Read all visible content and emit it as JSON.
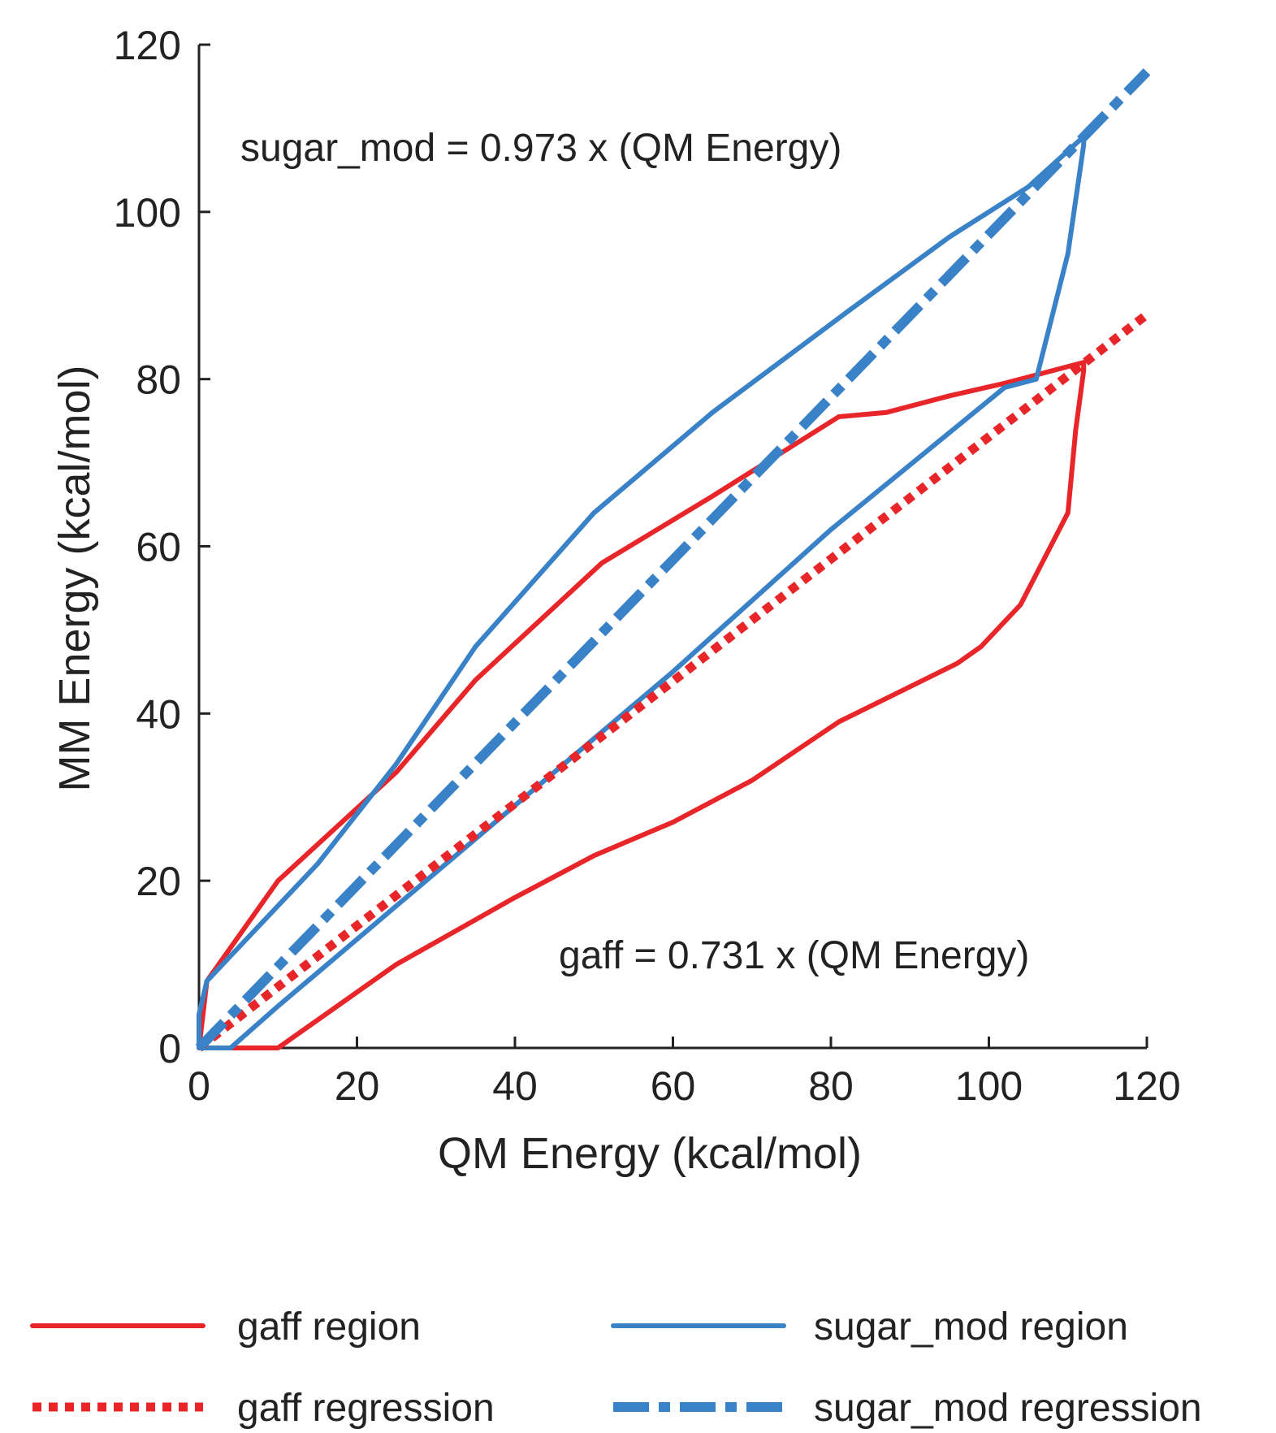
{
  "chart_data": {
    "type": "line",
    "title": "",
    "xlabel": "QM Energy (kcal/mol)",
    "ylabel": "MM Energy (kcal/mol)",
    "xlim": [
      0,
      120
    ],
    "ylim": [
      0,
      120
    ],
    "xticks": [
      0,
      20,
      40,
      60,
      80,
      100,
      120
    ],
    "yticks": [
      0,
      20,
      40,
      60,
      80,
      100,
      120
    ],
    "grid": false,
    "legend_position": "bottom",
    "colors": {
      "gaff": "#e8262a",
      "sugar_mod": "#3a82c8"
    },
    "annotations": [
      {
        "id": "sugar_mod_eq",
        "text": "sugar_mod = 0.973 x (QM Energy)"
      },
      {
        "id": "gaff_eq",
        "text": "gaff = 0.731 x (QM Energy)"
      }
    ],
    "series": [
      {
        "name": "gaff region",
        "style": "solid",
        "color": "#e8262a",
        "x": [
          0,
          0.5,
          1,
          10,
          25,
          35,
          51,
          65,
          81,
          87,
          95,
          102,
          112,
          112,
          111,
          110,
          104,
          99,
          96,
          81,
          70,
          60,
          50,
          40,
          25,
          10,
          7,
          0
        ],
        "y": [
          0,
          4,
          8,
          20,
          33,
          44,
          58,
          66,
          75.5,
          76,
          78,
          79.5,
          82,
          81,
          74,
          64,
          53,
          48,
          46,
          39,
          32,
          27,
          23,
          18,
          10,
          0,
          0,
          0
        ]
      },
      {
        "name": "sugar_mod region",
        "style": "solid",
        "color": "#3a82c8",
        "x": [
          0,
          0,
          1,
          5,
          15,
          25,
          35,
          50,
          65,
          82,
          95,
          105,
          112,
          112,
          110,
          106,
          102,
          80,
          60,
          50,
          25,
          15,
          10,
          4,
          0
        ],
        "y": [
          0,
          4,
          8,
          12,
          22,
          34,
          48,
          64,
          76,
          88,
          97,
          103,
          109,
          108,
          95,
          80,
          79,
          62,
          45,
          37,
          17,
          9,
          5,
          0,
          0
        ]
      },
      {
        "name": "gaff regression",
        "style": "dotted",
        "color": "#e8262a",
        "x": [
          0,
          120
        ],
        "y": [
          0,
          87.72
        ]
      },
      {
        "name": "sugar_mod regression",
        "style": "dashdot",
        "color": "#3a82c8",
        "x": [
          0,
          120
        ],
        "y": [
          0,
          116.76
        ]
      }
    ],
    "legend": [
      {
        "label": "gaff region",
        "series": "gaff region"
      },
      {
        "label": "sugar_mod region",
        "series": "sugar_mod region"
      },
      {
        "label": "gaff regression",
        "series": "gaff regression"
      },
      {
        "label": "sugar_mod regression",
        "series": "sugar_mod regression"
      }
    ]
  }
}
